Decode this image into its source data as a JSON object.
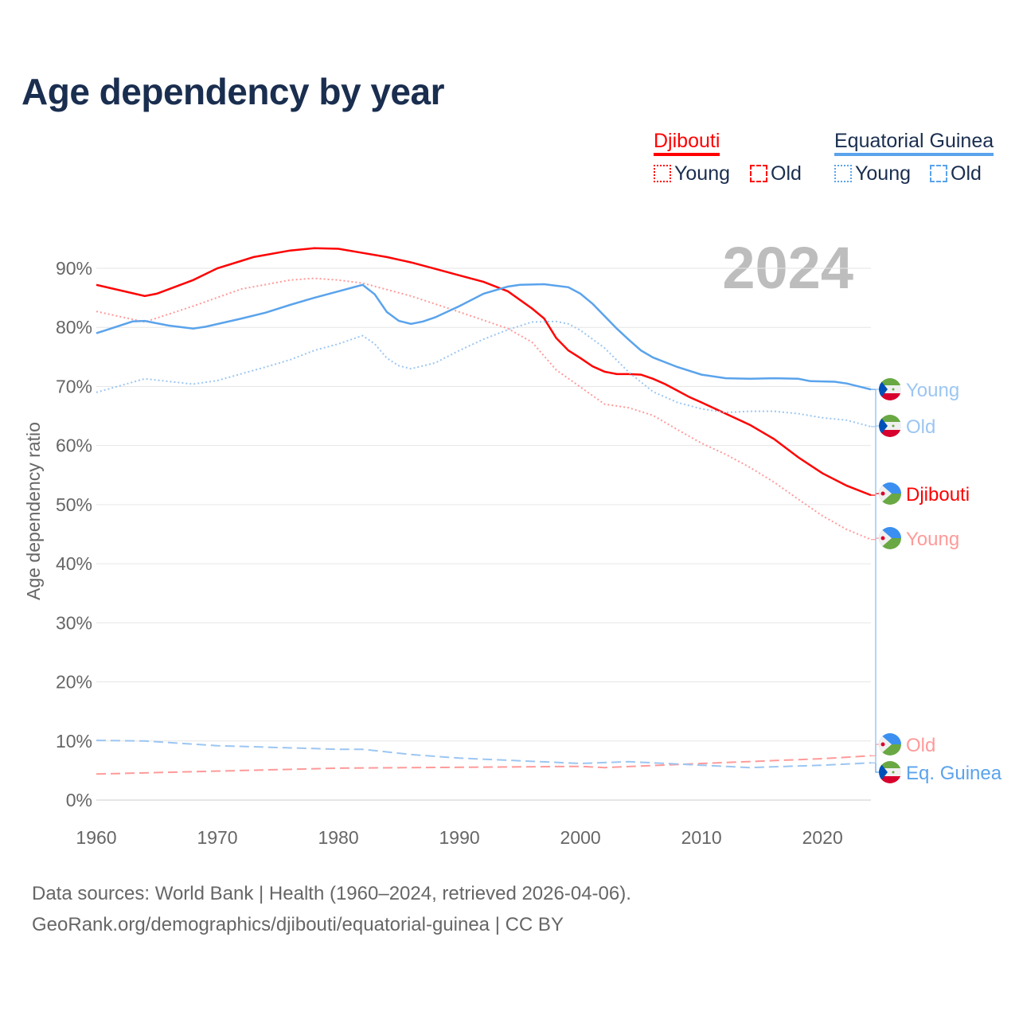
{
  "title": "Age dependency by year",
  "legend": {
    "djibouti": {
      "name": "Djibouti",
      "young": "Young",
      "old": "Old",
      "color": "#ff0000"
    },
    "eqguinea": {
      "name": "Equatorial Guinea",
      "young": "Young",
      "old": "Old",
      "color": "#5aa3ec"
    }
  },
  "year_label": "2024",
  "footer": {
    "line1": "Data sources: World Bank | Health (1960–2024, retrieved 2026-04-06).",
    "line2": "GeoRank.org/demographics/djibouti/equatorial-guinea | CC BY"
  },
  "chart_data": {
    "type": "line",
    "title": "Age dependency by year",
    "xlabel": "",
    "ylabel": "Age dependency ratio",
    "xlim": [
      1960,
      2024
    ],
    "ylim": [
      0,
      90
    ],
    "xticks": [
      "1960",
      "1970",
      "1980",
      "1990",
      "2000",
      "2010",
      "2020"
    ],
    "yticks": [
      "0%",
      "10%",
      "20%",
      "30%",
      "40%",
      "50%",
      "60%",
      "70%",
      "80%",
      "90%"
    ],
    "grid": true,
    "series": [
      {
        "name": "Djibouti",
        "end_label": "Djibouti",
        "color": "#ff0000",
        "style": "solid",
        "x": [
          1960,
          1964,
          1965,
          1968,
          1970,
          1973,
          1976,
          1978,
          1980,
          1982,
          1984,
          1986,
          1988,
          1990,
          1992,
          1994,
          1996,
          1997,
          1998,
          1999,
          2000,
          2001,
          2002,
          2003,
          2004,
          2005,
          2006,
          2007,
          2008,
          2009,
          2010,
          2012,
          2014,
          2016,
          2018,
          2020,
          2022,
          2024
        ],
        "y": [
          87.2,
          85.3,
          85.7,
          88.0,
          90.0,
          91.9,
          93.0,
          93.4,
          93.3,
          92.6,
          91.9,
          91.0,
          89.9,
          88.8,
          87.7,
          86.1,
          83.2,
          81.5,
          78.2,
          76.1,
          74.8,
          73.4,
          72.5,
          72.1,
          72.1,
          72.0,
          71.3,
          70.4,
          69.3,
          68.2,
          67.3,
          65.4,
          63.5,
          61.1,
          58.0,
          55.3,
          53.2,
          51.6
        ]
      },
      {
        "name": "Djibouti Young",
        "end_label": "Young",
        "color": "#ff9a9a",
        "style": "dotted",
        "x": [
          1960,
          1964,
          1968,
          1972,
          1976,
          1978,
          1980,
          1982,
          1986,
          1990,
          1994,
          1996,
          1998,
          2000,
          2002,
          2004,
          2006,
          2008,
          2010,
          2012,
          2014,
          2016,
          2018,
          2020,
          2022,
          2024
        ],
        "y": [
          82.7,
          80.9,
          83.6,
          86.5,
          88.0,
          88.3,
          88.0,
          87.5,
          85.3,
          82.6,
          79.8,
          77.5,
          72.8,
          69.9,
          67.0,
          66.4,
          65.1,
          62.7,
          60.4,
          58.5,
          56.3,
          53.8,
          50.9,
          48.1,
          45.8,
          44.1
        ]
      },
      {
        "name": "Djibouti Old",
        "end_label": "Old",
        "color": "#ff9a9a",
        "style": "dashed",
        "x": [
          1960,
          1980,
          2000,
          2002,
          2010,
          2020,
          2024
        ],
        "y": [
          4.4,
          5.4,
          5.7,
          5.5,
          6.2,
          7.0,
          7.5
        ]
      },
      {
        "name": "Eq. Guinea",
        "end_label": "Eq. Guinea",
        "color": "#5aa3ec",
        "style": "solid",
        "x": [
          1960,
          1963,
          1964,
          1966,
          1968,
          1969,
          1972,
          1974,
          1976,
          1978,
          1980,
          1982,
          1983,
          1984,
          1985,
          1986,
          1987,
          1988,
          1990,
          1992,
          1994,
          1995,
          1997,
          1999,
          2000,
          2001,
          2002,
          2003,
          2004,
          2005,
          2006,
          2008,
          2010,
          2012,
          2014,
          2016,
          2018,
          2019,
          2021,
          2022,
          2024
        ],
        "y": [
          79.0,
          81.0,
          81.1,
          80.3,
          79.8,
          80.1,
          81.5,
          82.5,
          83.8,
          85.0,
          86.1,
          87.2,
          85.6,
          82.6,
          81.1,
          80.6,
          81.0,
          81.7,
          83.6,
          85.7,
          86.9,
          87.2,
          87.3,
          86.8,
          85.7,
          84.0,
          81.9,
          79.8,
          77.9,
          76.1,
          74.9,
          73.3,
          72.0,
          71.4,
          71.3,
          71.4,
          71.3,
          70.9,
          70.8,
          70.5,
          69.5
        ]
      },
      {
        "name": "Eq. Guinea Young",
        "end_label": "Young",
        "color": "#9cc6f2",
        "style": "dotted",
        "x": [
          1960,
          1964,
          1968,
          1970,
          1974,
          1976,
          1978,
          1980,
          1982,
          1983,
          1984,
          1985,
          1986,
          1988,
          1990,
          1992,
          1994,
          1996,
          1998,
          1999,
          2000,
          2002,
          2004,
          2006,
          2008,
          2010,
          2012,
          2014,
          2016,
          2018,
          2020,
          2022,
          2024
        ],
        "y": [
          69.0,
          71.3,
          70.4,
          71.0,
          73.3,
          74.5,
          76.1,
          77.2,
          78.6,
          77.2,
          74.8,
          73.5,
          73.0,
          74.0,
          76.1,
          78.0,
          79.6,
          80.9,
          81.0,
          80.6,
          79.5,
          76.5,
          72.4,
          69.1,
          67.3,
          66.2,
          65.6,
          65.8,
          65.8,
          65.4,
          64.7,
          64.3,
          63.2
        ]
      },
      {
        "name": "Eq. Guinea Old",
        "end_label": "Old",
        "color": "#9cc6f2",
        "style": "dashed",
        "x": [
          1960,
          1964,
          1970,
          1980,
          1982,
          1986,
          1990,
          2000,
          2004,
          2008,
          2014,
          2020,
          2024
        ],
        "y": [
          10.1,
          10.0,
          9.2,
          8.6,
          8.6,
          7.7,
          7.1,
          6.2,
          6.5,
          6.1,
          5.5,
          5.9,
          6.3
        ]
      }
    ]
  }
}
